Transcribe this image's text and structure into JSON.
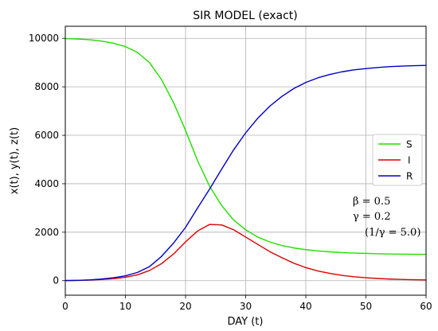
{
  "chart_data": {
    "type": "line",
    "title": "SIR MODEL (exact)",
    "xlabel": "DAY (t)",
    "ylabel": "x(t), y(t), z(t)",
    "xlim": [
      0,
      60
    ],
    "ylim": [
      -600,
      10500
    ],
    "xticks": [
      0,
      10,
      20,
      30,
      40,
      50,
      60
    ],
    "yticks": [
      0,
      2000,
      4000,
      6000,
      8000,
      10000
    ],
    "grid": true,
    "legend_position": "center-right",
    "x": [
      0,
      2,
      4,
      6,
      8,
      10,
      12,
      14,
      16,
      18,
      20,
      22,
      24,
      26,
      28,
      30,
      32,
      34,
      36,
      38,
      40,
      42,
      44,
      46,
      48,
      50,
      52,
      54,
      56,
      58,
      60
    ],
    "series": [
      {
        "name": "S",
        "color": "#22dd00",
        "values": [
          9990,
          9975,
          9945,
          9890,
          9800,
          9660,
          9420,
          9000,
          8300,
          7350,
          6200,
          4950,
          3900,
          3100,
          2500,
          2100,
          1800,
          1600,
          1450,
          1350,
          1280,
          1230,
          1190,
          1160,
          1140,
          1125,
          1110,
          1100,
          1095,
          1090,
          1085
        ]
      },
      {
        "name": "I",
        "color": "#dd0000",
        "values": [
          10,
          15,
          25,
          45,
          80,
          140,
          240,
          420,
          700,
          1100,
          1600,
          2050,
          2320,
          2300,
          2100,
          1800,
          1500,
          1200,
          950,
          720,
          540,
          400,
          300,
          220,
          160,
          120,
          90,
          65,
          50,
          38,
          30
        ]
      },
      {
        "name": "R",
        "color": "#0000cc",
        "values": [
          0,
          10,
          30,
          65,
          120,
          200,
          340,
          580,
          1000,
          1550,
          2200,
          3000,
          3780,
          4600,
          5400,
          6100,
          6700,
          7200,
          7600,
          7930,
          8180,
          8370,
          8510,
          8620,
          8700,
          8755,
          8800,
          8835,
          8855,
          8872,
          8885
        ]
      }
    ],
    "annotations": [
      "β = 0.5",
      "γ = 0.2",
      "(1/γ = 5.0)"
    ]
  }
}
